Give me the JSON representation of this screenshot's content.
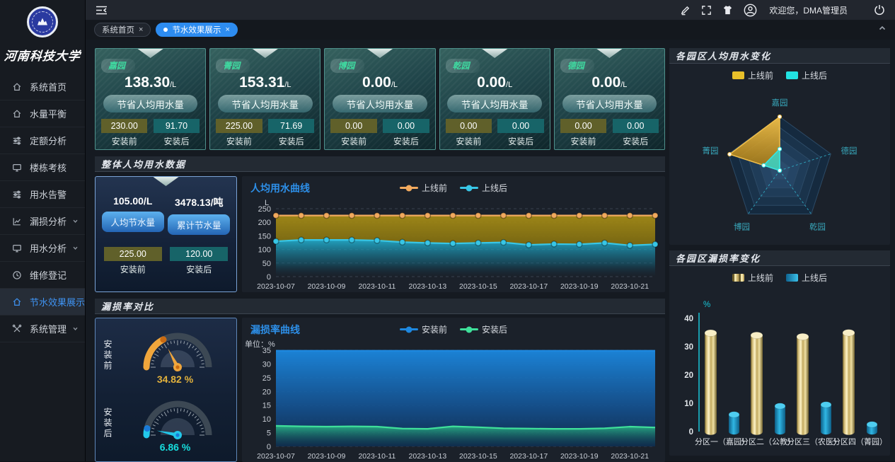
{
  "sidebar": {
    "university": "河南科技大学",
    "items": [
      {
        "label": "系统首页",
        "icon": "home-icon",
        "expandable": false,
        "active": false
      },
      {
        "label": "水量平衡",
        "icon": "home-icon",
        "expandable": false,
        "active": false
      },
      {
        "label": "定额分析",
        "icon": "sliders-icon",
        "expandable": false,
        "active": false
      },
      {
        "label": "楼栋考核",
        "icon": "monitor-icon",
        "expandable": false,
        "active": false
      },
      {
        "label": "用水告警",
        "icon": "sliders-icon",
        "expandable": false,
        "active": false
      },
      {
        "label": "漏损分析",
        "icon": "chart-icon",
        "expandable": true,
        "active": false
      },
      {
        "label": "用水分析",
        "icon": "monitor-icon",
        "expandable": true,
        "active": false
      },
      {
        "label": "维修登记",
        "icon": "clock-icon",
        "expandable": false,
        "active": false
      },
      {
        "label": "节水效果展示",
        "icon": "home-icon",
        "expandable": false,
        "active": true
      },
      {
        "label": "系统管理",
        "icon": "tools-icon",
        "expandable": true,
        "active": false
      }
    ]
  },
  "header": {
    "welcome": "欢迎您，DMA管理员"
  },
  "tabs": [
    {
      "label": "系统首页",
      "active": false
    },
    {
      "label": "节水效果展示",
      "active": true
    }
  ],
  "labels": {
    "before": "安装前",
    "after": "安装后",
    "close": "×"
  },
  "park_cards": [
    {
      "name": "嘉园",
      "value": "138.30",
      "unit": "/L",
      "button": "节省人均用水量",
      "before": "230.00",
      "after": "91.70"
    },
    {
      "name": "菁园",
      "value": "153.31",
      "unit": "/L",
      "button": "节省人均用水量",
      "before": "225.00",
      "after": "71.69"
    },
    {
      "name": "博园",
      "value": "0.00",
      "unit": "/L",
      "button": "节省人均用水量",
      "before": "0.00",
      "after": "0.00"
    },
    {
      "name": "乾园",
      "value": "0.00",
      "unit": "/L",
      "button": "节省人均用水量",
      "before": "0.00",
      "after": "0.00"
    },
    {
      "name": "德园",
      "value": "0.00",
      "unit": "/L",
      "button": "节省人均用水量",
      "before": "0.00",
      "after": "0.00"
    }
  ],
  "sections": {
    "overall": "整体人均用水数据",
    "leakage": "漏损率对比",
    "radar_title": "各园区人均用水变化",
    "bars_title": "各园区漏损率变化"
  },
  "summary_card": {
    "left_value": "105.00/L",
    "left_button": "人均节水量",
    "right_value": "3478.13/吨",
    "right_button": "累计节水量",
    "before": "225.00",
    "after": "120.00"
  },
  "chart_data": [
    {
      "id": "water_line",
      "type": "area",
      "title": "人均用水曲线",
      "unit_label": "L",
      "legend_style": "dot",
      "markers": true,
      "x": [
        "2023-10-07",
        "2023-10-08",
        "2023-10-09",
        "2023-10-10",
        "2023-10-11",
        "2023-10-12",
        "2023-10-13",
        "2023-10-14",
        "2023-10-15",
        "2023-10-16",
        "2023-10-17",
        "2023-10-18",
        "2023-10-19",
        "2023-10-20",
        "2023-10-21",
        "2023-10-22"
      ],
      "label_every": 2,
      "ylim": [
        0,
        250
      ],
      "yticks": [
        0,
        50,
        100,
        150,
        200,
        250
      ],
      "series": [
        {
          "name": "上线前",
          "color": "#f2aa5e",
          "fill_mode": "band",
          "fill": [
            [
              0,
              "#a38a17",
              0.95
            ],
            [
              1,
              "#7c6a10",
              0.95
            ]
          ],
          "values": [
            225,
            225,
            225,
            225,
            225,
            225,
            225,
            225,
            225,
            225,
            225,
            225,
            225,
            225,
            225,
            225
          ]
        },
        {
          "name": "上线后",
          "color": "#38c6e6",
          "fill_mode": "zero",
          "fill": [
            [
              0,
              "#23b2d2",
              0.88
            ],
            [
              0.65,
              "#15718c",
              0.45
            ],
            [
              1,
              "#0d3a4e",
              0
            ]
          ],
          "values": [
            130,
            135,
            135,
            135,
            133,
            127,
            124,
            122,
            124,
            126,
            117,
            120,
            119,
            124,
            115,
            119
          ]
        }
      ]
    },
    {
      "id": "leak_line",
      "type": "area",
      "title": "漏损率曲线",
      "unit_label": "单位：%",
      "legend_style": "dot",
      "markers": false,
      "x": [
        "2023-10-07",
        "2023-10-08",
        "2023-10-09",
        "2023-10-10",
        "2023-10-11",
        "2023-10-12",
        "2023-10-13",
        "2023-10-14",
        "2023-10-15",
        "2023-10-16",
        "2023-10-17",
        "2023-10-18",
        "2023-10-19",
        "2023-10-20",
        "2023-10-21",
        "2023-10-22"
      ],
      "label_every": 2,
      "ylim": [
        0,
        35
      ],
      "yticks": [
        0,
        5,
        10,
        15,
        20,
        25,
        30,
        35
      ],
      "series": [
        {
          "name": "安装前",
          "color": "#1e88e0",
          "fill_mode": "zero",
          "fill": [
            [
              0,
              "#1b86dc",
              0.96
            ],
            [
              0.6,
              "#14508e",
              0.92
            ],
            [
              1,
              "#0e2d50",
              0.9
            ]
          ],
          "values": [
            34.8,
            34.8,
            34.8,
            34.8,
            34.8,
            34.8,
            34.8,
            34.8,
            34.8,
            34.8,
            34.8,
            34.8,
            34.8,
            34.8,
            34.8,
            34.8
          ]
        },
        {
          "name": "安装后",
          "color": "#3fe09a",
          "fill_mode": "zero",
          "fill": [
            [
              0,
              "#2ecf8c",
              0.75
            ],
            [
              1,
              "#1a5c48",
              0
            ]
          ],
          "values": [
            7.5,
            7.3,
            7.2,
            7.3,
            7.2,
            6.5,
            6.4,
            7.3,
            7.0,
            6.6,
            6.5,
            6.4,
            6.4,
            6.6,
            7.2,
            6.9
          ]
        }
      ]
    },
    {
      "id": "radar",
      "type": "radar",
      "title": "各园区人均用水变化",
      "legend_style": "rect",
      "axes": [
        "嘉园",
        "德园",
        "乾园",
        "博园",
        "菁园"
      ],
      "max": 230,
      "series": [
        {
          "name": "上线前",
          "color": "#e8c02a",
          "stroke": "#f0be4a",
          "values": [
            230,
            0,
            0,
            0,
            225
          ]
        },
        {
          "name": "上线后",
          "color": "#22e2e2",
          "stroke": "#30e8e8",
          "values": [
            91.7,
            0,
            0,
            0,
            71.69
          ]
        }
      ]
    },
    {
      "id": "bars",
      "type": "bar",
      "title": "各园区漏损率变化",
      "unit_label": "%",
      "legend_style": "bar",
      "categories": [
        "分区一（嘉园）",
        "分区二（公教）",
        "分区三（农医）",
        "分区四（菁园）"
      ],
      "ylim": [
        0,
        40
      ],
      "yticks": [
        0,
        10,
        20,
        30,
        40
      ],
      "series": [
        {
          "name": "上线前",
          "values": [
            34.8,
            34.0,
            33.5,
            34.9
          ]
        },
        {
          "name": "上线后",
          "values": [
            6.0,
            9.0,
            9.5,
            2.5
          ]
        }
      ]
    },
    {
      "id": "gauge_before",
      "type": "gauge",
      "label": "安装前",
      "value": 34.82,
      "max": 100,
      "display": "34.82 %",
      "color": "#f0a63c",
      "accent": "#c96a12",
      "text_color": "#e2b23c"
    },
    {
      "id": "gauge_after",
      "type": "gauge",
      "label": "安装后",
      "value": 6.86,
      "max": 100,
      "display": "6.86 %",
      "color": "#22c8ea",
      "accent": "#1a7ad8",
      "text_color": "#17dede"
    }
  ]
}
